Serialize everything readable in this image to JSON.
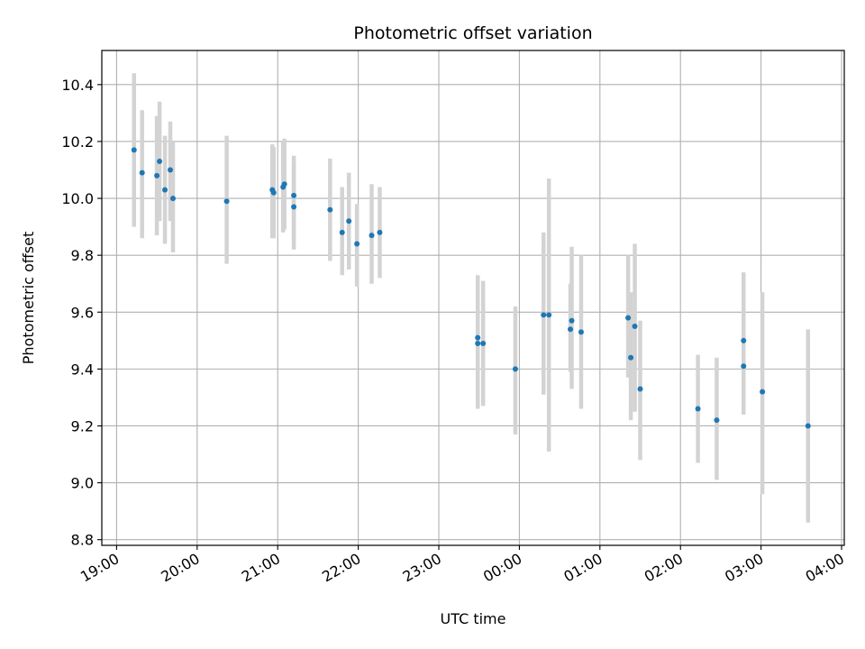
{
  "chart_data": {
    "type": "scatter",
    "title": "Photometric offset variation",
    "xlabel": "UTC time",
    "ylabel": "Photometric offset",
    "xlim": [
      "2023-01-01 18:49",
      "2023-01-02 04:02"
    ],
    "ylim": [
      8.78,
      10.52
    ],
    "grid": true,
    "legend": "none",
    "colors": {
      "point": "#1f77b4",
      "errorbar": "#d3d3d3",
      "grid": "#b0b0b0"
    },
    "x_ticks": [
      {
        "t": "2023-01-01 19:00",
        "label": "19:00"
      },
      {
        "t": "2023-01-01 20:00",
        "label": "20:00"
      },
      {
        "t": "2023-01-01 21:00",
        "label": "21:00"
      },
      {
        "t": "2023-01-01 22:00",
        "label": "22:00"
      },
      {
        "t": "2023-01-01 23:00",
        "label": "23:00"
      },
      {
        "t": "2023-01-02 00:00",
        "label": "00:00"
      },
      {
        "t": "2023-01-02 01:00",
        "label": "01:00"
      },
      {
        "t": "2023-01-02 02:00",
        "label": "02:00"
      },
      {
        "t": "2023-01-02 03:00",
        "label": "03:00"
      },
      {
        "t": "2023-01-02 04:00",
        "label": "04:00"
      }
    ],
    "y_ticks": [
      8.8,
      9.0,
      9.2,
      9.4,
      9.6,
      9.8,
      10.0,
      10.2,
      10.4
    ],
    "y_tick_labels": [
      "8.8",
      "9.0",
      "9.2",
      "9.4",
      "9.6",
      "9.8",
      "10.0",
      "10.2",
      "10.4"
    ],
    "points": [
      {
        "t": "2023-01-01 19:13",
        "y": 10.17,
        "lo": 9.9,
        "hi": 10.44
      },
      {
        "t": "2023-01-01 19:19",
        "y": 10.09,
        "lo": 9.86,
        "hi": 10.31
      },
      {
        "t": "2023-01-01 19:30",
        "y": 10.08,
        "lo": 9.87,
        "hi": 10.29
      },
      {
        "t": "2023-01-01 19:32",
        "y": 10.13,
        "lo": 9.92,
        "hi": 10.34
      },
      {
        "t": "2023-01-01 19:36",
        "y": 10.03,
        "lo": 9.84,
        "hi": 10.22
      },
      {
        "t": "2023-01-01 19:40",
        "y": 10.1,
        "lo": 9.92,
        "hi": 10.27
      },
      {
        "t": "2023-01-01 19:42",
        "y": 10.0,
        "lo": 9.81,
        "hi": 10.2
      },
      {
        "t": "2023-01-01 20:22",
        "y": 9.99,
        "lo": 9.77,
        "hi": 10.22
      },
      {
        "t": "2023-01-01 20:56",
        "y": 10.03,
        "lo": 9.86,
        "hi": 10.19
      },
      {
        "t": "2023-01-01 20:57",
        "y": 10.02,
        "lo": 9.86,
        "hi": 10.18
      },
      {
        "t": "2023-01-01 21:04",
        "y": 10.04,
        "lo": 9.88,
        "hi": 10.2
      },
      {
        "t": "2023-01-01 21:05",
        "y": 10.05,
        "lo": 9.89,
        "hi": 10.21
      },
      {
        "t": "2023-01-01 21:12",
        "y": 10.01,
        "lo": 9.86,
        "hi": 10.15
      },
      {
        "t": "2023-01-01 21:12",
        "y": 9.97,
        "lo": 9.82,
        "hi": 10.12
      },
      {
        "t": "2023-01-01 21:39",
        "y": 9.96,
        "lo": 9.78,
        "hi": 10.14
      },
      {
        "t": "2023-01-01 21:48",
        "y": 9.88,
        "lo": 9.73,
        "hi": 10.04
      },
      {
        "t": "2023-01-01 21:53",
        "y": 9.92,
        "lo": 9.75,
        "hi": 10.09
      },
      {
        "t": "2023-01-01 21:59",
        "y": 9.84,
        "lo": 9.69,
        "hi": 9.98
      },
      {
        "t": "2023-01-01 22:10",
        "y": 9.87,
        "lo": 9.7,
        "hi": 10.05
      },
      {
        "t": "2023-01-01 22:16",
        "y": 9.88,
        "lo": 9.72,
        "hi": 10.04
      },
      {
        "t": "2023-01-01 23:29",
        "y": 9.51,
        "lo": 9.3,
        "hi": 9.73
      },
      {
        "t": "2023-01-01 23:29",
        "y": 9.49,
        "lo": 9.26,
        "hi": 9.72
      },
      {
        "t": "2023-01-01 23:33",
        "y": 9.49,
        "lo": 9.27,
        "hi": 9.71
      },
      {
        "t": "2023-01-01 23:57",
        "y": 9.4,
        "lo": 9.17,
        "hi": 9.62
      },
      {
        "t": "2023-01-02 00:18",
        "y": 9.59,
        "lo": 9.31,
        "hi": 9.88
      },
      {
        "t": "2023-01-02 00:22",
        "y": 9.59,
        "lo": 9.11,
        "hi": 10.07
      },
      {
        "t": "2023-01-02 00:38",
        "y": 9.54,
        "lo": 9.39,
        "hi": 9.7
      },
      {
        "t": "2023-01-02 00:39",
        "y": 9.57,
        "lo": 9.33,
        "hi": 9.83
      },
      {
        "t": "2023-01-02 00:46",
        "y": 9.53,
        "lo": 9.26,
        "hi": 9.8
      },
      {
        "t": "2023-01-02 01:21",
        "y": 9.58,
        "lo": 9.37,
        "hi": 9.8
      },
      {
        "t": "2023-01-02 01:23",
        "y": 9.44,
        "lo": 9.22,
        "hi": 9.67
      },
      {
        "t": "2023-01-02 01:26",
        "y": 9.55,
        "lo": 9.25,
        "hi": 9.84
      },
      {
        "t": "2023-01-02 01:30",
        "y": 9.33,
        "lo": 9.08,
        "hi": 9.57
      },
      {
        "t": "2023-01-02 02:13",
        "y": 9.26,
        "lo": 9.07,
        "hi": 9.45
      },
      {
        "t": "2023-01-02 02:27",
        "y": 9.22,
        "lo": 9.01,
        "hi": 9.44
      },
      {
        "t": "2023-01-02 02:47",
        "y": 9.5,
        "lo": 9.27,
        "hi": 9.74
      },
      {
        "t": "2023-01-02 02:47",
        "y": 9.41,
        "lo": 9.24,
        "hi": 9.57
      },
      {
        "t": "2023-01-02 03:01",
        "y": 9.32,
        "lo": 8.96,
        "hi": 9.67
      },
      {
        "t": "2023-01-02 03:35",
        "y": 9.2,
        "lo": 8.86,
        "hi": 9.54
      }
    ]
  }
}
